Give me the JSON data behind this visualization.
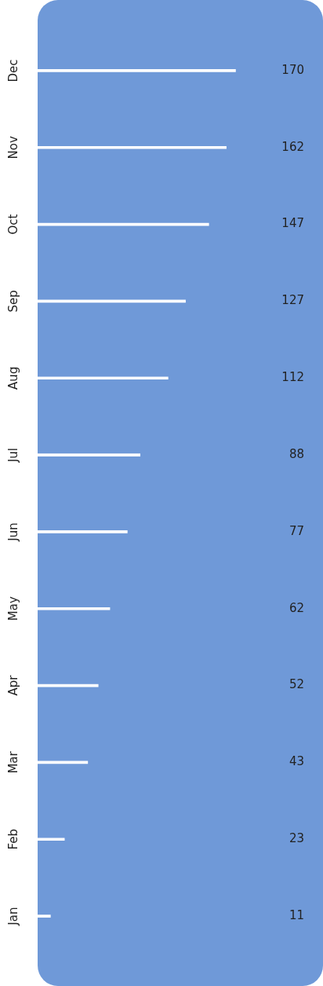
{
  "chart_data": {
    "type": "bar",
    "orientation": "horizontal",
    "categories": [
      "Dec",
      "Nov",
      "Oct",
      "Sep",
      "Aug",
      "Jul",
      "Jun",
      "May",
      "Apr",
      "Mar",
      "Feb",
      "Jan"
    ],
    "values": [
      170,
      162,
      147,
      127,
      112,
      88,
      77,
      62,
      52,
      43,
      23,
      11
    ],
    "color": "#ffffff",
    "data_labels": true,
    "legend": false
  }
}
